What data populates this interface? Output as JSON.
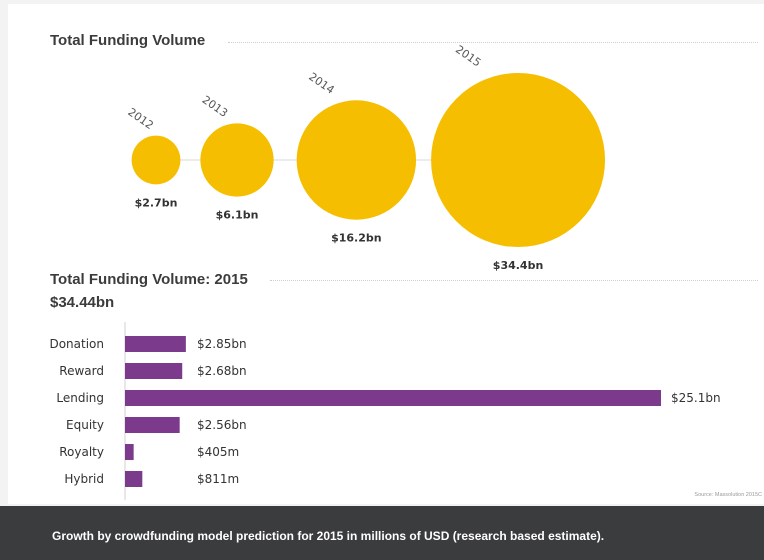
{
  "chart_data": [
    {
      "type": "scatter",
      "title": "Total Funding Volume",
      "categories": [
        "2012",
        "2013",
        "2014",
        "2015"
      ],
      "values": [
        2.7,
        6.1,
        16.2,
        34.4
      ],
      "value_labels": [
        "$2.7bn",
        "$6.1bn",
        "$16.2bn",
        "$34.4bn"
      ],
      "color": "#f6be00"
    },
    {
      "type": "bar",
      "title": "Total Funding Volume: 2015",
      "subtitle": "$34.44bn",
      "categories": [
        "Donation",
        "Reward",
        "Lending",
        "Equity",
        "Royalty",
        "Hybrid"
      ],
      "values": [
        2850,
        2680,
        25100,
        2560,
        405,
        811
      ],
      "value_labels": [
        "$2.85bn",
        "$2.68bn",
        "$25.1bn",
        "$2.56bn",
        "$405m",
        "$811m"
      ],
      "orientation": "horizontal",
      "color": "#7b3a8c"
    }
  ],
  "source": "Source: Massolution 2015C",
  "caption": "Growth by crowdfunding model prediction for 2015 in millions of USD (research based estimate)."
}
